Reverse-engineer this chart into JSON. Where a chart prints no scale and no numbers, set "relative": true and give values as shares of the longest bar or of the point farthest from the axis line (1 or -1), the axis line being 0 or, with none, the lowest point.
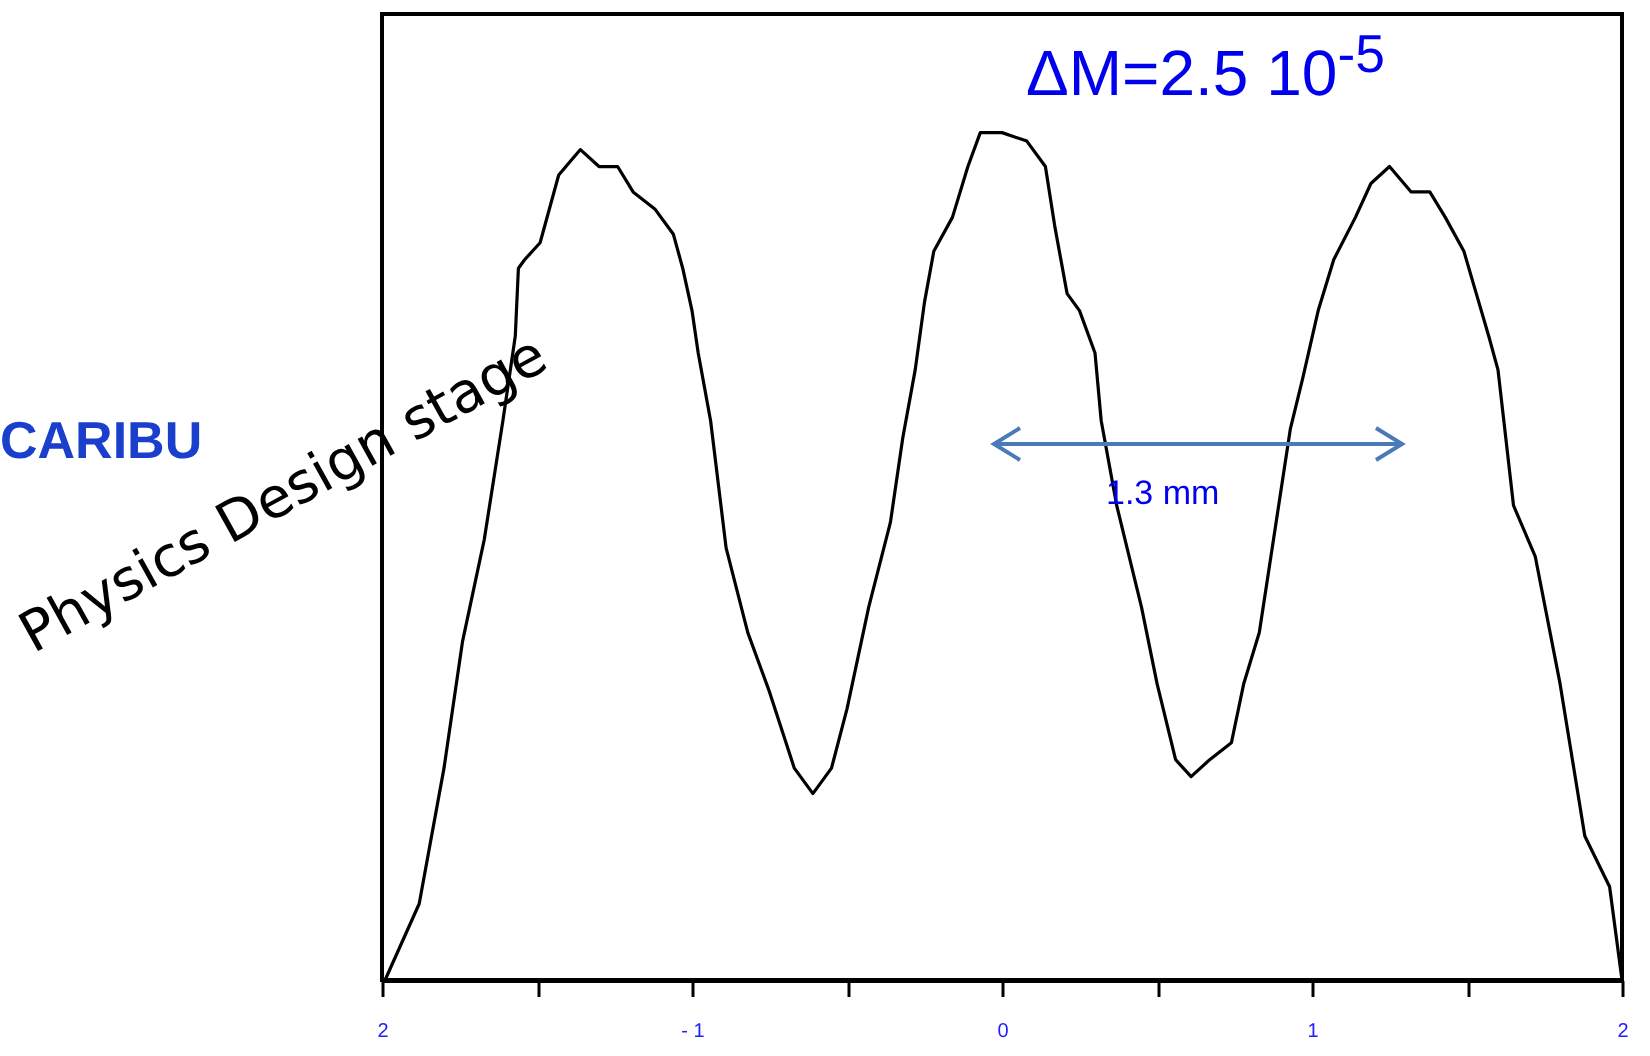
{
  "chart_data": {
    "type": "line",
    "relative": true,
    "color": "#000000",
    "tick_labels": "x",
    "grid": false,
    "xlim": [
      -2,
      2
    ],
    "xticks": [
      {
        "value": -2,
        "label": "2"
      },
      {
        "value": -1.5,
        "label": null
      },
      {
        "value": -1,
        "label": "- 1"
      },
      {
        "value": -0.5,
        "label": null
      },
      0,
      {
        "value": 0.5,
        "label": null
      },
      1,
      {
        "value": 1.5,
        "label": null
      },
      2
    ],
    "x": [
      -1.99,
      -1.88,
      -1.8,
      -1.74,
      -1.67,
      -1.61,
      -1.57,
      -1.56,
      -1.54,
      -1.49,
      -1.43,
      -1.36,
      -1.3,
      -1.24,
      -1.19,
      -1.12,
      -1.06,
      -1.03,
      -1.0,
      -0.98,
      -0.94,
      -0.89,
      -0.82,
      -0.75,
      -0.67,
      -0.61,
      -0.55,
      -0.5,
      -0.43,
      -0.36,
      -0.32,
      -0.28,
      -0.25,
      -0.22,
      -0.16,
      -0.11,
      -0.07,
      0.0,
      0.08,
      0.14,
      0.17,
      0.21,
      0.25,
      0.3,
      0.32,
      0.37,
      0.45,
      0.5,
      0.56,
      0.61,
      0.67,
      0.74,
      0.78,
      0.83,
      0.88,
      0.93,
      0.97,
      1.02,
      1.07,
      1.14,
      1.19,
      1.25,
      1.32,
      1.38,
      1.43,
      1.49,
      1.53,
      1.57,
      1.6,
      1.65,
      1.72,
      1.8,
      1.88,
      1.96,
      2.0
    ],
    "values": [
      0.0,
      0.09,
      0.25,
      0.4,
      0.52,
      0.66,
      0.76,
      0.84,
      0.85,
      0.87,
      0.95,
      0.98,
      0.96,
      0.96,
      0.93,
      0.91,
      0.88,
      0.84,
      0.79,
      0.74,
      0.66,
      0.51,
      0.41,
      0.34,
      0.25,
      0.22,
      0.25,
      0.32,
      0.44,
      0.54,
      0.64,
      0.72,
      0.8,
      0.86,
      0.9,
      0.96,
      1.0,
      1.0,
      0.99,
      0.96,
      0.89,
      0.81,
      0.79,
      0.74,
      0.66,
      0.56,
      0.44,
      0.35,
      0.26,
      0.24,
      0.26,
      0.28,
      0.35,
      0.41,
      0.53,
      0.65,
      0.71,
      0.79,
      0.85,
      0.9,
      0.94,
      0.96,
      0.93,
      0.93,
      0.9,
      0.86,
      0.81,
      0.76,
      0.72,
      0.56,
      0.5,
      0.35,
      0.17,
      0.11,
      0.0
    ],
    "annotations": [
      "CARIBU",
      "Physics Design stage",
      "ΔM=2.5 10$^{-5}$",
      "1.3 mm"
    ]
  }
}
